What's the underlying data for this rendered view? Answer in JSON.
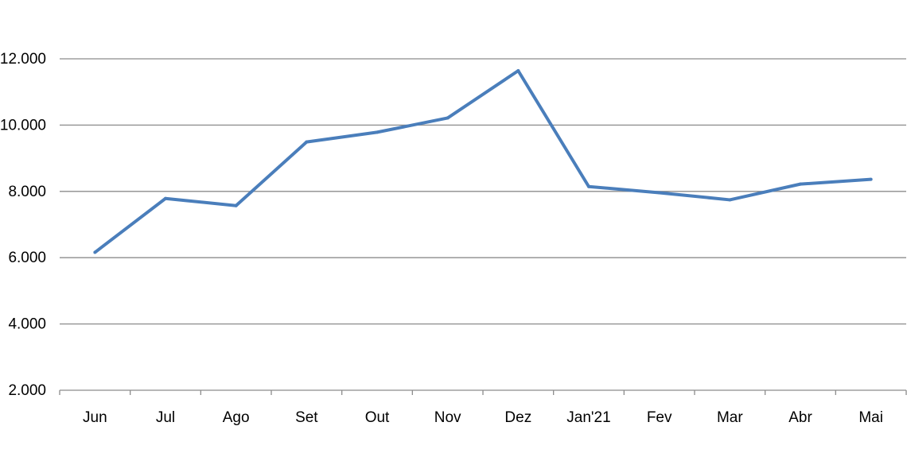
{
  "chart_data": {
    "type": "line",
    "title": "",
    "xlabel": "",
    "ylabel": "",
    "categories": [
      "Jun",
      "Jul",
      "Ago",
      "Set",
      "Out",
      "Nov",
      "Dez",
      "Jan'21",
      "Fev",
      "Mar",
      "Abr",
      "Mai"
    ],
    "series": [
      {
        "values": [
          6160,
          7785,
          7570,
          9490,
          9785,
          10215,
          11640,
          8145,
          7960,
          7745,
          8220,
          8365
        ],
        "color": "#4a7ebb"
      }
    ],
    "ylim": [
      2000,
      12000
    ],
    "yticks": [
      2000,
      4000,
      6000,
      8000,
      10000,
      12000
    ],
    "ytick_labels": [
      "2.000",
      "4.000",
      "6.000",
      "8.000",
      "10.000",
      "12.000"
    ],
    "grid": "horizontal",
    "legend": "none",
    "gridline_color": "#8c8c8c"
  }
}
